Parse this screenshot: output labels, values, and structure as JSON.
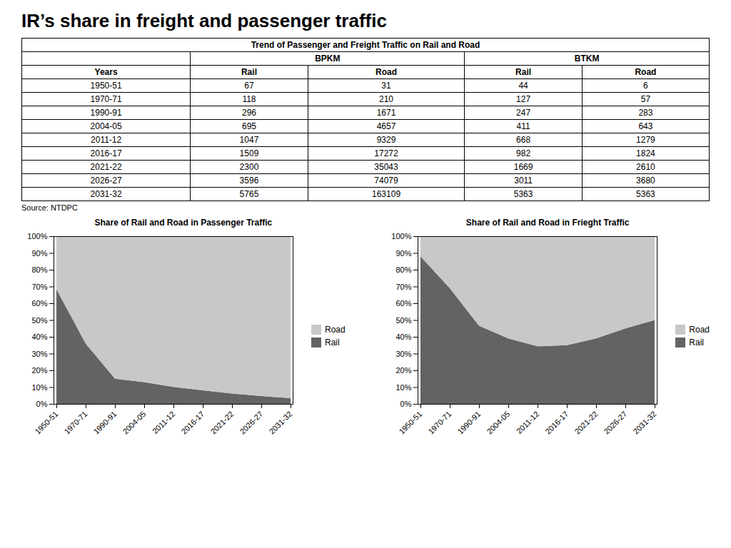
{
  "title": "IR’s share in freight and passenger traffic",
  "chart_data": [
    {
      "type": "table",
      "title": "Trend of Passenger and Freight Traffic on Rail and Road",
      "row_label": "Years",
      "categories": [
        "1950-51",
        "1970-71",
        "1990-91",
        "2004-05",
        "2011-12",
        "2016-17",
        "2021-22",
        "2026-27",
        "2031-32"
      ],
      "series": [
        {
          "name": "Rail",
          "group": "BPKM",
          "values": [
            67,
            118,
            296,
            695,
            1047,
            1509,
            2300,
            3596,
            5765
          ]
        },
        {
          "name": "Road",
          "group": "BPKM",
          "values": [
            31,
            210,
            1671,
            4657,
            9329,
            17272,
            35043,
            74079,
            163109
          ]
        },
        {
          "name": "Rail",
          "group": "BTKM",
          "values": [
            44,
            127,
            247,
            411,
            668,
            982,
            1669,
            3011,
            5363
          ]
        },
        {
          "name": "Road",
          "group": "BTKM",
          "values": [
            6,
            57,
            283,
            643,
            1279,
            1824,
            2610,
            3680,
            5363
          ]
        }
      ],
      "caption": "Source: NTDPC"
    },
    {
      "type": "area",
      "stacked": true,
      "legend": "right",
      "title": "Share of Rail and Road in Passenger Traffic",
      "categories": [
        "1950-51",
        "1970-71",
        "1990-91",
        "2004-05",
        "2011-12",
        "2016-17",
        "2021-22",
        "2026-27",
        "2031-32"
      ],
      "series": [
        {
          "name": "Rail",
          "color": "#636363",
          "values": [
            68.3673,
            35.9756,
            15.0483,
            12.9858,
            10.0906,
            8.0347,
            6.1591,
            4.6295,
            3.4138
          ]
        },
        {
          "name": "Road",
          "color": "#c8c8c8",
          "values": [
            31.6327,
            64.0244,
            84.9517,
            87.0142,
            89.9094,
            91.9653,
            93.8409,
            95.3705,
            96.5862
          ]
        }
      ],
      "ylim": [
        0,
        100
      ],
      "yticks": [
        {
          "value": 0,
          "label": "0%"
        },
        {
          "value": 10,
          "label": "10%"
        },
        {
          "value": 20,
          "label": "20%"
        },
        {
          "value": 30,
          "label": "30%"
        },
        {
          "value": 40,
          "label": "40%"
        },
        {
          "value": 50,
          "label": "50%"
        },
        {
          "value": 60,
          "label": "60%"
        },
        {
          "value": 70,
          "label": "70%"
        },
        {
          "value": 80,
          "label": "80%"
        },
        {
          "value": 90,
          "label": "90%"
        },
        {
          "value": 100,
          "label": "100%"
        }
      ],
      "grid": false
    },
    {
      "type": "area",
      "stacked": true,
      "legend": "right",
      "title": "Share of Rail and Road in Frieght Traffic",
      "categories": [
        "1950-51",
        "1970-71",
        "1990-91",
        "2004-05",
        "2011-12",
        "2016-17",
        "2021-22",
        "2026-27",
        "2031-32"
      ],
      "series": [
        {
          "name": "Rail",
          "color": "#636363",
          "values": [
            88,
            69.0217,
            46.6038,
            38.9943,
            34.3092,
            34.9964,
            39.0044,
            45.0007,
            50
          ]
        },
        {
          "name": "Road",
          "color": "#c8c8c8",
          "values": [
            12,
            30.9783,
            53.3962,
            61.0057,
            65.6908,
            65.0036,
            60.9956,
            54.9993,
            50
          ]
        }
      ],
      "ylim": [
        0,
        100
      ],
      "yticks": [
        {
          "value": 0,
          "label": "0%"
        },
        {
          "value": 10,
          "label": "10%"
        },
        {
          "value": 20,
          "label": "20%"
        },
        {
          "value": 30,
          "label": "30%"
        },
        {
          "value": 40,
          "label": "40%"
        },
        {
          "value": 50,
          "label": "50%"
        },
        {
          "value": 60,
          "label": "60%"
        },
        {
          "value": 70,
          "label": "70%"
        },
        {
          "value": 80,
          "label": "80%"
        },
        {
          "value": 90,
          "label": "90%"
        },
        {
          "value": 100,
          "label": "100%"
        }
      ],
      "grid": false
    }
  ]
}
